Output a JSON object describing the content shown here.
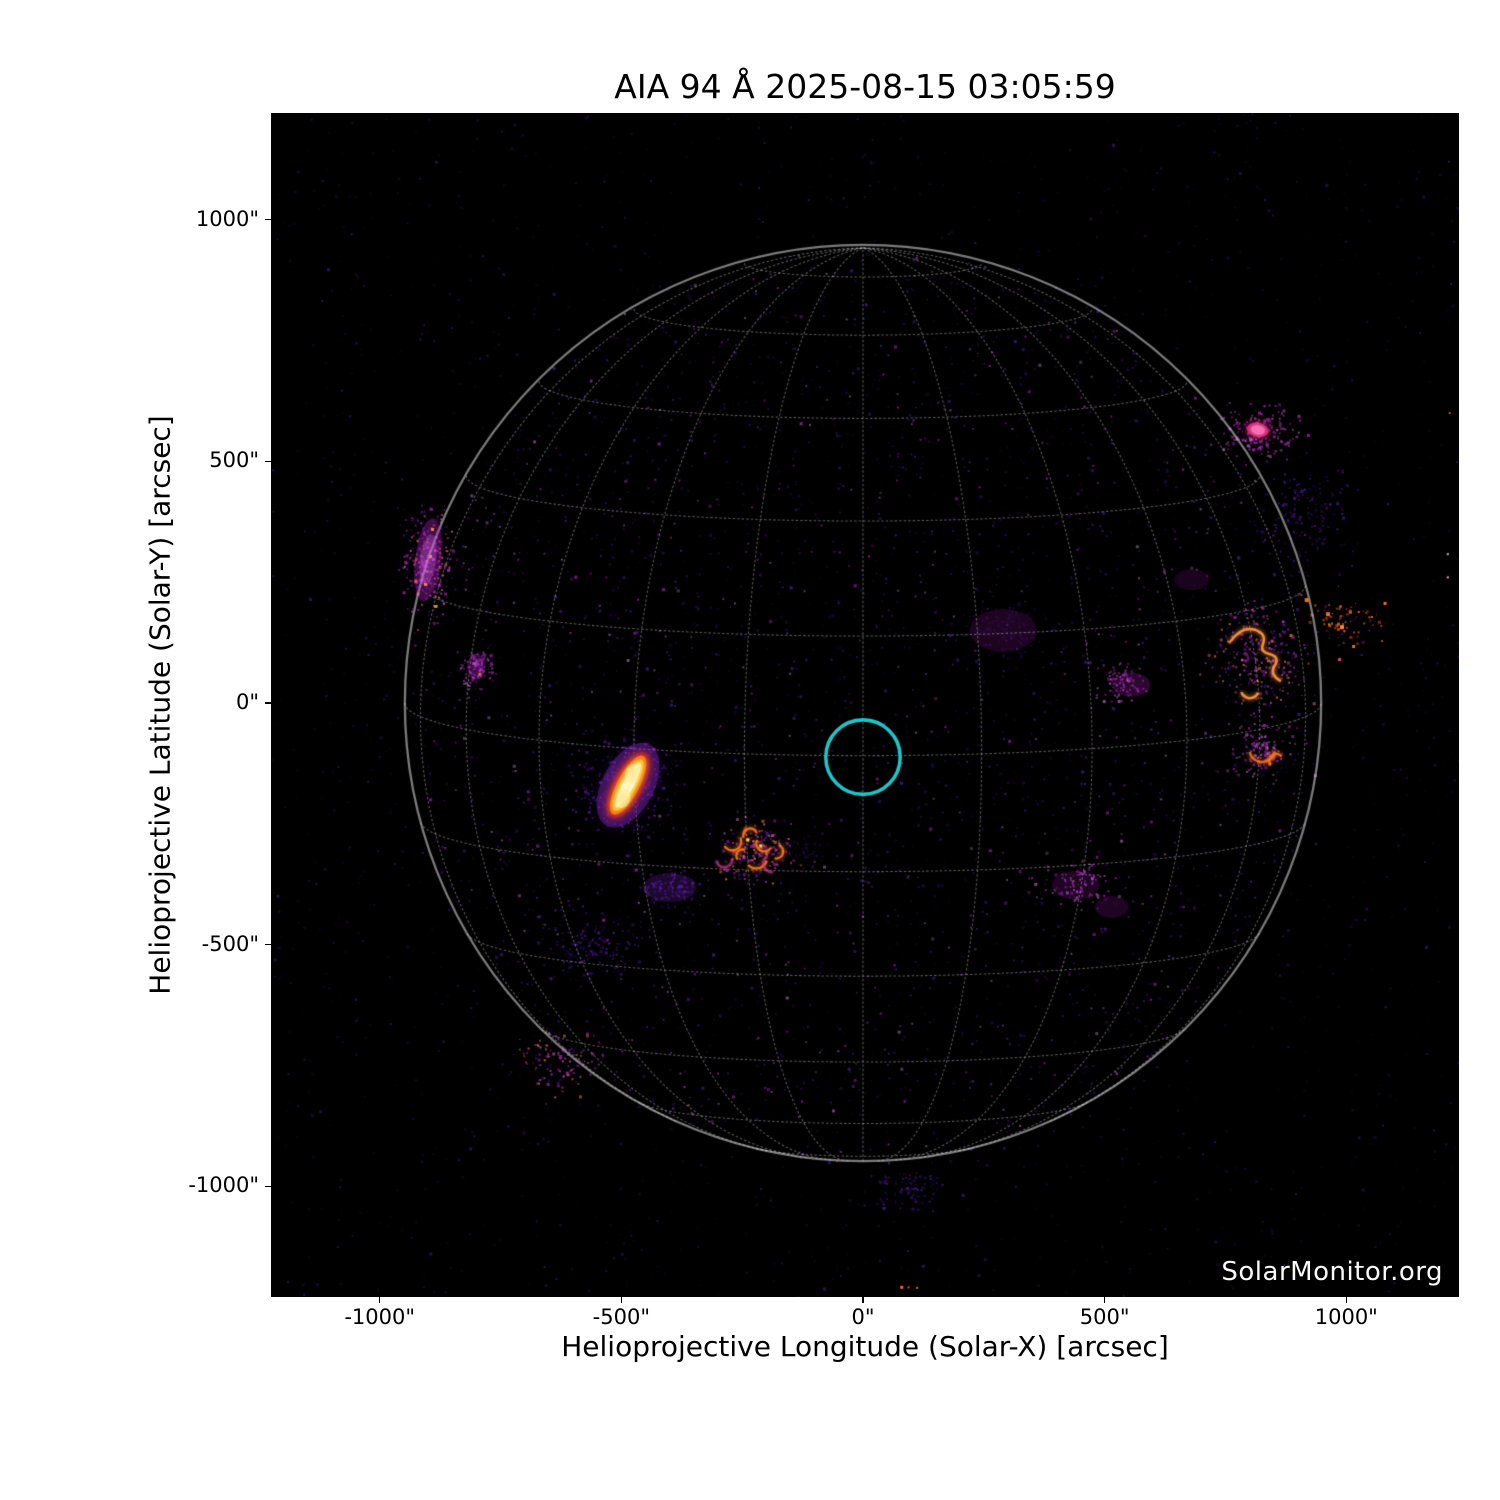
{
  "figure": {
    "watermark": "SolarMonitor.org"
  },
  "chart_data": {
    "type": "heatmap",
    "title": "AIA 94 Å 2025-08-15 03:05:59",
    "instrument": "AIA",
    "wavelength_label": "94 Å",
    "datetime_label": "2025-08-15 03:05:59",
    "xlabel": "Helioprojective Longitude (Solar-X) [arcsec]",
    "ylabel": "Helioprojective Latitude (Solar-Y) [arcsec]",
    "xlim": [
      -1225,
      1233
    ],
    "ylim": [
      -1229,
      1221
    ],
    "grid": true,
    "background_color": "#000000",
    "xticks": [
      {
        "value": -1000,
        "label": "-1000\""
      },
      {
        "value": -500,
        "label": "-500\""
      },
      {
        "value": 0,
        "label": "0\""
      },
      {
        "value": 500,
        "label": "500\""
      },
      {
        "value": 1000,
        "label": "1000\""
      }
    ],
    "yticks": [
      {
        "value": 1000,
        "label": "1000\""
      },
      {
        "value": 500,
        "label": "500\""
      },
      {
        "value": 0,
        "label": "0\""
      },
      {
        "value": -500,
        "label": "-500\""
      },
      {
        "value": -1000,
        "label": "-1000\""
      }
    ],
    "solar_disk": {
      "radius_arcsec": 948,
      "b0_deg": 6.6,
      "grid_spacing_deg": 15,
      "grid_color": "rgba(255,255,255,0.72)",
      "limb_color": "rgba(255,255,255,0.95)"
    },
    "pointing_marker": {
      "x_arcsec": 0,
      "y_arcsec": -112,
      "radius_arcsec": 77,
      "color": "#1fc5c6"
    },
    "active_regions": [
      {
        "id": "bright-flaring-region",
        "x_arcsec": -486,
        "y_arcsec": -170,
        "rotation_deg": -62,
        "extent_arcsec": [
          145,
          60
        ],
        "colors": [
          "#fef9c3",
          "#fbbf24",
          "#f97316",
          "#9f1239",
          "#9333ea"
        ],
        "style": "elongated-core"
      },
      {
        "id": "loop-arcade-region",
        "x_arcsec": -225,
        "y_arcsec": -303,
        "extent_arcsec": [
          140,
          100
        ],
        "colors": [
          "#f97316",
          "#fde047",
          "#c026d3"
        ],
        "style": "broken-arcs"
      },
      {
        "id": "west-limb-region",
        "x_arcsec": 817,
        "y_arcsec": 99,
        "extent_arcsec": [
          120,
          135
        ],
        "colors": [
          "#fb923c",
          "#f97316"
        ],
        "style": "squiggle-arcs"
      },
      {
        "id": "west-limb-region-south",
        "x_arcsec": 826,
        "y_arcsec": -95,
        "extent_arcsec": [
          70,
          70
        ],
        "colors": [
          "#f97316"
        ],
        "style": "arc"
      },
      {
        "id": "northwest-limb-patch",
        "x_arcsec": 817,
        "y_arcsec": 565,
        "extent_arcsec": [
          48,
          30
        ],
        "colors": [
          "#db2777",
          "#f472b6"
        ],
        "style": "blob"
      },
      {
        "id": "east-limb-diffuse-patch",
        "x_arcsec": -900,
        "y_arcsec": 296,
        "extent_arcsec": [
          55,
          175
        ],
        "colors": [
          "#c026d3",
          "#fb923c"
        ],
        "style": "diffuse"
      },
      {
        "id": "east-diffuse-patch-2",
        "x_arcsec": -800,
        "y_arcsec": 75,
        "extent_arcsec": [
          38,
          55
        ],
        "colors": [
          "#c026d3",
          "#fb923c"
        ],
        "style": "diffuse-small"
      }
    ],
    "diffuse_patches": [
      {
        "x": 290,
        "y": 150,
        "sx": 58,
        "sy": 37,
        "color": "rgba(162,28,175,0.17)"
      },
      {
        "x": 555,
        "y": 38,
        "sx": 33,
        "sy": 21,
        "color": "rgba(192,38,211,0.20)"
      },
      {
        "x": 440,
        "y": -377,
        "sx": 41,
        "sy": 25,
        "color": "rgba(162,28,175,0.18)"
      },
      {
        "x": 515,
        "y": -422,
        "sx": 29,
        "sy": 19,
        "color": "rgba(162,28,175,0.18)"
      },
      {
        "x": -400,
        "y": -382,
        "sx": 46,
        "sy": 25,
        "color": "rgba(147,51,234,0.18)"
      },
      {
        "x": 680,
        "y": 255,
        "sx": 30,
        "sy": 18,
        "color": "rgba(162,28,175,0.15)"
      }
    ],
    "speckle_clusters": [
      {
        "x": -900,
        "y": 296,
        "sx": 60,
        "sy": 130,
        "n": 240,
        "palette": "mix"
      },
      {
        "x": -800,
        "y": 75,
        "sx": 45,
        "sy": 60,
        "n": 90,
        "palette": "magenta"
      },
      {
        "x": -486,
        "y": -170,
        "sx": 120,
        "sy": 120,
        "n": 300,
        "palette": "purple"
      },
      {
        "x": -225,
        "y": -303,
        "sx": 90,
        "sy": 80,
        "n": 200,
        "palette": "mix"
      },
      {
        "x": -400,
        "y": -382,
        "sx": 90,
        "sy": 60,
        "n": 120,
        "palette": "purple"
      },
      {
        "x": 817,
        "y": 99,
        "sx": 110,
        "sy": 130,
        "n": 280,
        "palette": "mix"
      },
      {
        "x": 826,
        "y": -95,
        "sx": 70,
        "sy": 70,
        "n": 130,
        "palette": "magenta"
      },
      {
        "x": 817,
        "y": 565,
        "sx": 90,
        "sy": 70,
        "n": 190,
        "palette": "magenta"
      },
      {
        "x": 915,
        "y": 390,
        "sx": 110,
        "sy": 120,
        "n": 150,
        "palette": "purple"
      },
      {
        "x": 290,
        "y": 150,
        "sx": 110,
        "sy": 80,
        "n": 150,
        "palette": "faint"
      },
      {
        "x": 530,
        "y": 40,
        "sx": 60,
        "sy": 50,
        "n": 90,
        "palette": "magenta"
      },
      {
        "x": 440,
        "y": -370,
        "sx": 90,
        "sy": 60,
        "n": 110,
        "palette": "magenta"
      },
      {
        "x": -560,
        "y": -500,
        "sx": 120,
        "sy": 90,
        "n": 150,
        "palette": "purple"
      },
      {
        "x": -640,
        "y": -740,
        "sx": 100,
        "sy": 80,
        "n": 120,
        "palette": "mix"
      },
      {
        "x": 90,
        "y": -1000,
        "sx": 120,
        "sy": 60,
        "n": 100,
        "palette": "purple"
      },
      {
        "x": -130,
        "y": -310,
        "sx": 70,
        "sy": 50,
        "n": 80,
        "palette": "faint"
      },
      {
        "x": 1000,
        "y": 170,
        "sx": 90,
        "sy": 70,
        "n": 90,
        "palette": "orange"
      }
    ],
    "edge_specks": [
      {
        "x": 77,
        "y": -1206,
        "color": "#f97316",
        "size": 3
      },
      {
        "x": 92,
        "y": -1207,
        "color": "#ef4444",
        "size": 2
      },
      {
        "x": 110,
        "y": -1208,
        "color": "#f97316",
        "size": 2
      },
      {
        "x": 1208,
        "y": 310,
        "color": "#f9a8d4",
        "size": 2
      },
      {
        "x": 1208,
        "y": 262,
        "color": "#f9a8d4",
        "size": 2
      },
      {
        "x": 1212,
        "y": 602,
        "color": "#ef4444",
        "size": 2
      },
      {
        "x": 914,
        "y": 217,
        "color": "#f97316",
        "size": 4
      },
      {
        "x": 958,
        "y": 188,
        "color": "#f97316",
        "size": 4
      },
      {
        "x": 987,
        "y": 161,
        "color": "#fb923c",
        "size": 4
      },
      {
        "x": 1012,
        "y": 120,
        "color": "#f97316",
        "size": 3
      },
      {
        "x": 983,
        "y": 93,
        "color": "#e8489a",
        "size": 3
      }
    ],
    "noise": {
      "seed": 42,
      "background_count": 2600,
      "disk_count": 2300
    }
  }
}
